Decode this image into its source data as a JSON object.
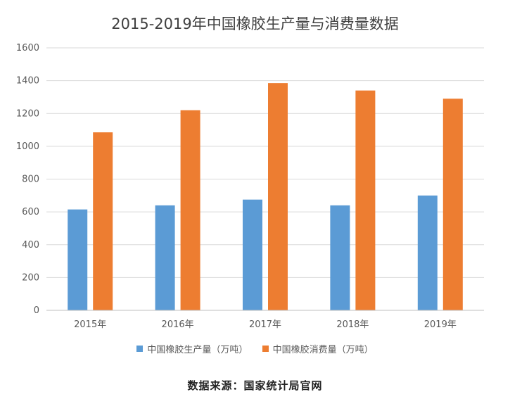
{
  "chart_data": {
    "type": "bar",
    "title": "2015-2019年中国橡胶生产量与消费量数据",
    "categories": [
      "2015年",
      "2016年",
      "2017年",
      "2018年",
      "2019年"
    ],
    "series": [
      {
        "name": "中国橡胶生产量（万吨）",
        "values": [
          615,
          640,
          675,
          640,
          700
        ],
        "color": "#5B9BD5"
      },
      {
        "name": "中国橡胶消费量（万吨）",
        "values": [
          1085,
          1220,
          1385,
          1340,
          1290
        ],
        "color": "#ED7D31"
      }
    ],
    "ylim": [
      0,
      1600
    ],
    "yticks": [
      0,
      200,
      400,
      600,
      800,
      1000,
      1200,
      1400,
      1600
    ],
    "grid": true,
    "legend_position": "bottom"
  },
  "source_note": "数据来源：国家统计局官网"
}
